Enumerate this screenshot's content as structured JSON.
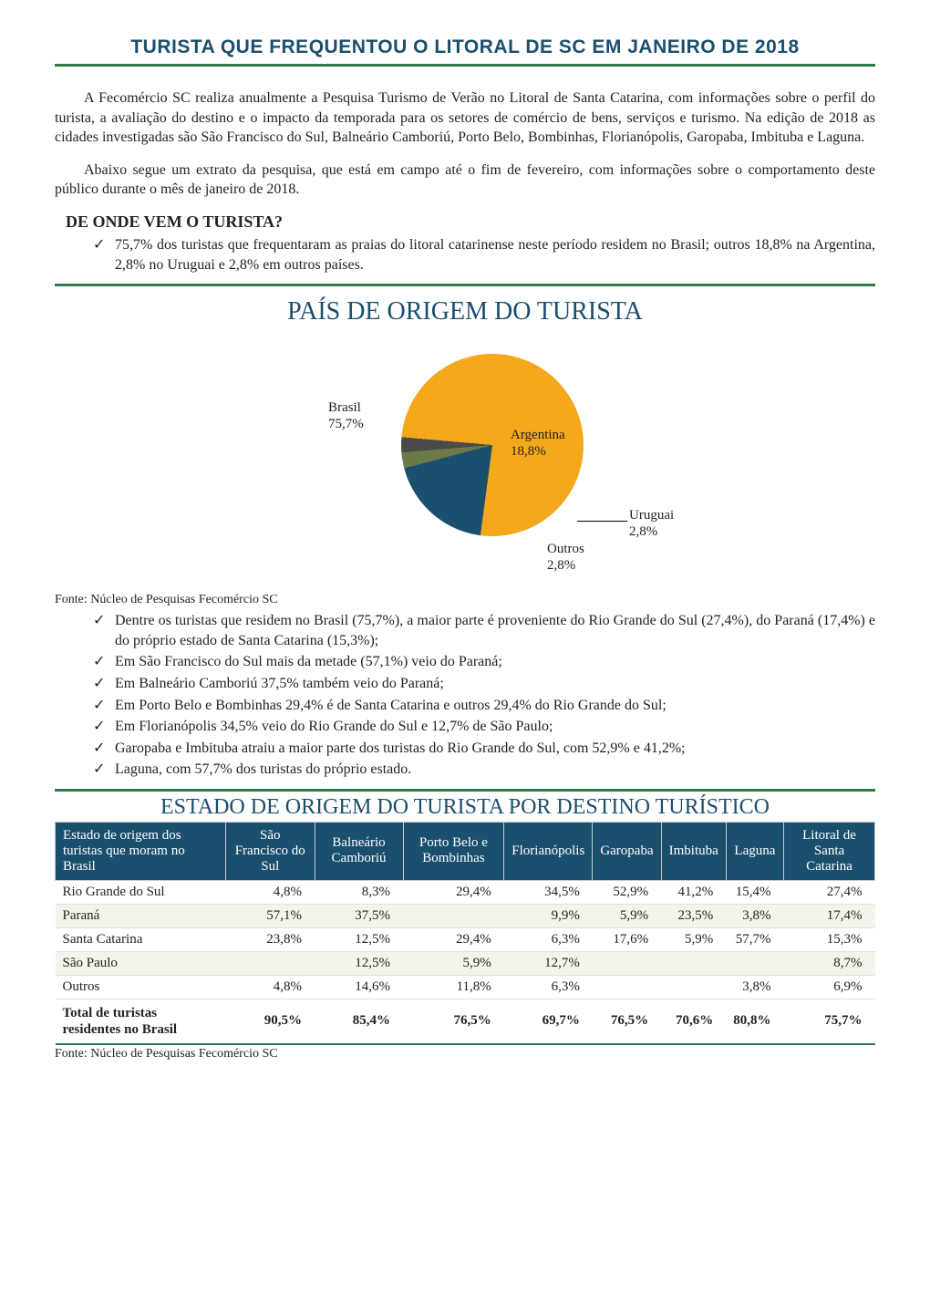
{
  "page_title": "TURISTA QUE FREQUENTOU O LITORAL DE SC EM JANEIRO DE 2018",
  "intro_paragraphs": [
    "A Fecomércio SC realiza anualmente a Pesquisa Turismo de Verão no Litoral de Santa Catarina, com informações sobre o perfil do turista, a avaliação do destino e o impacto da temporada para os setores de comércio de bens, serviços e turismo. Na edição de 2018 as cidades investigadas são São Francisco do Sul, Balneário Camboriú, Porto Belo, Bombinhas, Florianópolis, Garopaba, Imbituba e Laguna.",
    "Abaixo segue um extrato da pesquisa, que está em campo até o fim de fevereiro, com informações sobre o comportamento deste público durante o mês de janeiro de 2018."
  ],
  "section1": {
    "title": "DE ONDE VEM O TURISTA?",
    "bullets": [
      "75,7% dos turistas que frequentaram as praias do litoral catarinense neste período residem no Brasil; outros 18,8% na Argentina, 2,8% no Uruguai e 2,8% em outros países."
    ]
  },
  "chart": {
    "title": "PAÍS DE ORIGEM DO TURISTA",
    "type": "pie",
    "colors": {
      "Brasil": "#f4a81c",
      "Argentina": "#1a4f6e",
      "Uruguai": "#6c7a48",
      "Outros": "#4a4a4a"
    },
    "slices": [
      {
        "label": "Brasil",
        "pct_text": "75,7%",
        "value": 75.7
      },
      {
        "label": "Argentina",
        "pct_text": "18,8%",
        "value": 18.8
      },
      {
        "label": "Uruguai",
        "pct_text": "2,8%",
        "value": 2.8
      },
      {
        "label": "Outros",
        "pct_text": "2,8%",
        "value": 2.8
      }
    ],
    "source": "Fonte: Núcleo de Pesquisas Fecomércio SC"
  },
  "bullets2": [
    "Dentre os turistas que residem no Brasil (75,7%), a maior parte é proveniente do Rio Grande do Sul (27,4%), do Paraná (17,4%) e do próprio estado de Santa Catarina (15,3%);",
    "Em São Francisco do Sul mais da metade (57,1%) veio do Paraná;",
    "Em Balneário Camboriú 37,5% também veio do Paraná;",
    "Em Porto Belo e Bombinhas 29,4% é de Santa Catarina e outros 29,4% do Rio Grande do Sul;",
    "Em Florianópolis 34,5% veio do Rio Grande do Sul e 12,7% de São Paulo;",
    "Garopaba e Imbituba atraiu a maior parte dos turistas do Rio Grande do Sul, com 52,9% e 41,2%;",
    "Laguna, com 57,7% dos turistas do próprio estado."
  ],
  "table": {
    "title": "ESTADO DE ORIGEM DO TURISTA POR DESTINO TURÍSTICO",
    "columns": [
      "Estado de origem dos turistas que moram no Brasil",
      "São Francisco do Sul",
      "Balneário Camboriú",
      "Porto Belo e Bombinhas",
      "Florianópolis",
      "Garopaba",
      "Imbituba",
      "Laguna",
      "Litoral de Santa Catarina"
    ],
    "rows": [
      [
        "Rio Grande do Sul",
        "4,8%",
        "8,3%",
        "29,4%",
        "34,5%",
        "52,9%",
        "41,2%",
        "15,4%",
        "27,4%"
      ],
      [
        "Paraná",
        "57,1%",
        "37,5%",
        "",
        "9,9%",
        "5,9%",
        "23,5%",
        "3,8%",
        "17,4%"
      ],
      [
        "Santa Catarina",
        "23,8%",
        "12,5%",
        "29,4%",
        "6,3%",
        "17,6%",
        "5,9%",
        "57,7%",
        "15,3%"
      ],
      [
        "São Paulo",
        "",
        "12,5%",
        "5,9%",
        "12,7%",
        "",
        "",
        "",
        "8,7%"
      ],
      [
        "Outros",
        "4,8%",
        "14,6%",
        "11,8%",
        "6,3%",
        "",
        "",
        "3,8%",
        "6,9%"
      ]
    ],
    "total_row": [
      "Total de turistas residentes no Brasil",
      "90,5%",
      "85,4%",
      "76,5%",
      "69,7%",
      "76,5%",
      "70,6%",
      "80,8%",
      "75,7%"
    ],
    "source": "Fonte: Núcleo de Pesquisas Fecomércio SC"
  }
}
